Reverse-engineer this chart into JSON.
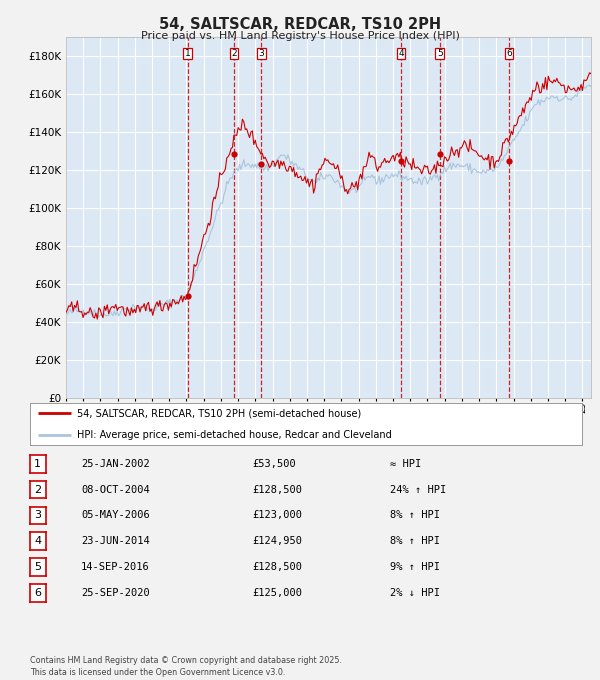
{
  "title": "54, SALTSCAR, REDCAR, TS10 2PH",
  "subtitle": "Price paid vs. HM Land Registry's House Price Index (HPI)",
  "bg_color": "#dce9f5",
  "fig_bg_color": "#f2f2f2",
  "red_line_color": "#cc0000",
  "blue_line_color": "#aac4de",
  "grid_color": "#ffffff",
  "vline_color": "#cc0000",
  "ylim": [
    0,
    190000
  ],
  "ytick_step": 20000,
  "x_start_year": 1995,
  "x_end_year": 2025,
  "legend_line1": "54, SALTSCAR, REDCAR, TS10 2PH (semi-detached house)",
  "legend_line2": "HPI: Average price, semi-detached house, Redcar and Cleveland",
  "transactions": [
    {
      "num": 1,
      "date": "25-JAN-2002",
      "year": 2002.07,
      "price": 53500,
      "hpi_rel": "≈ HPI"
    },
    {
      "num": 2,
      "date": "08-OCT-2004",
      "year": 2004.77,
      "price": 128500,
      "hpi_rel": "24% ↑ HPI"
    },
    {
      "num": 3,
      "date": "05-MAY-2006",
      "year": 2006.35,
      "price": 123000,
      "hpi_rel": "8% ↑ HPI"
    },
    {
      "num": 4,
      "date": "23-JUN-2014",
      "year": 2014.48,
      "price": 124950,
      "hpi_rel": "8% ↑ HPI"
    },
    {
      "num": 5,
      "date": "14-SEP-2016",
      "year": 2016.71,
      "price": 128500,
      "hpi_rel": "9% ↑ HPI"
    },
    {
      "num": 6,
      "date": "25-SEP-2020",
      "year": 2020.73,
      "price": 125000,
      "hpi_rel": "2% ↓ HPI"
    }
  ],
  "footer": "Contains HM Land Registry data © Crown copyright and database right 2025.\nThis data is licensed under the Open Government Licence v3.0."
}
